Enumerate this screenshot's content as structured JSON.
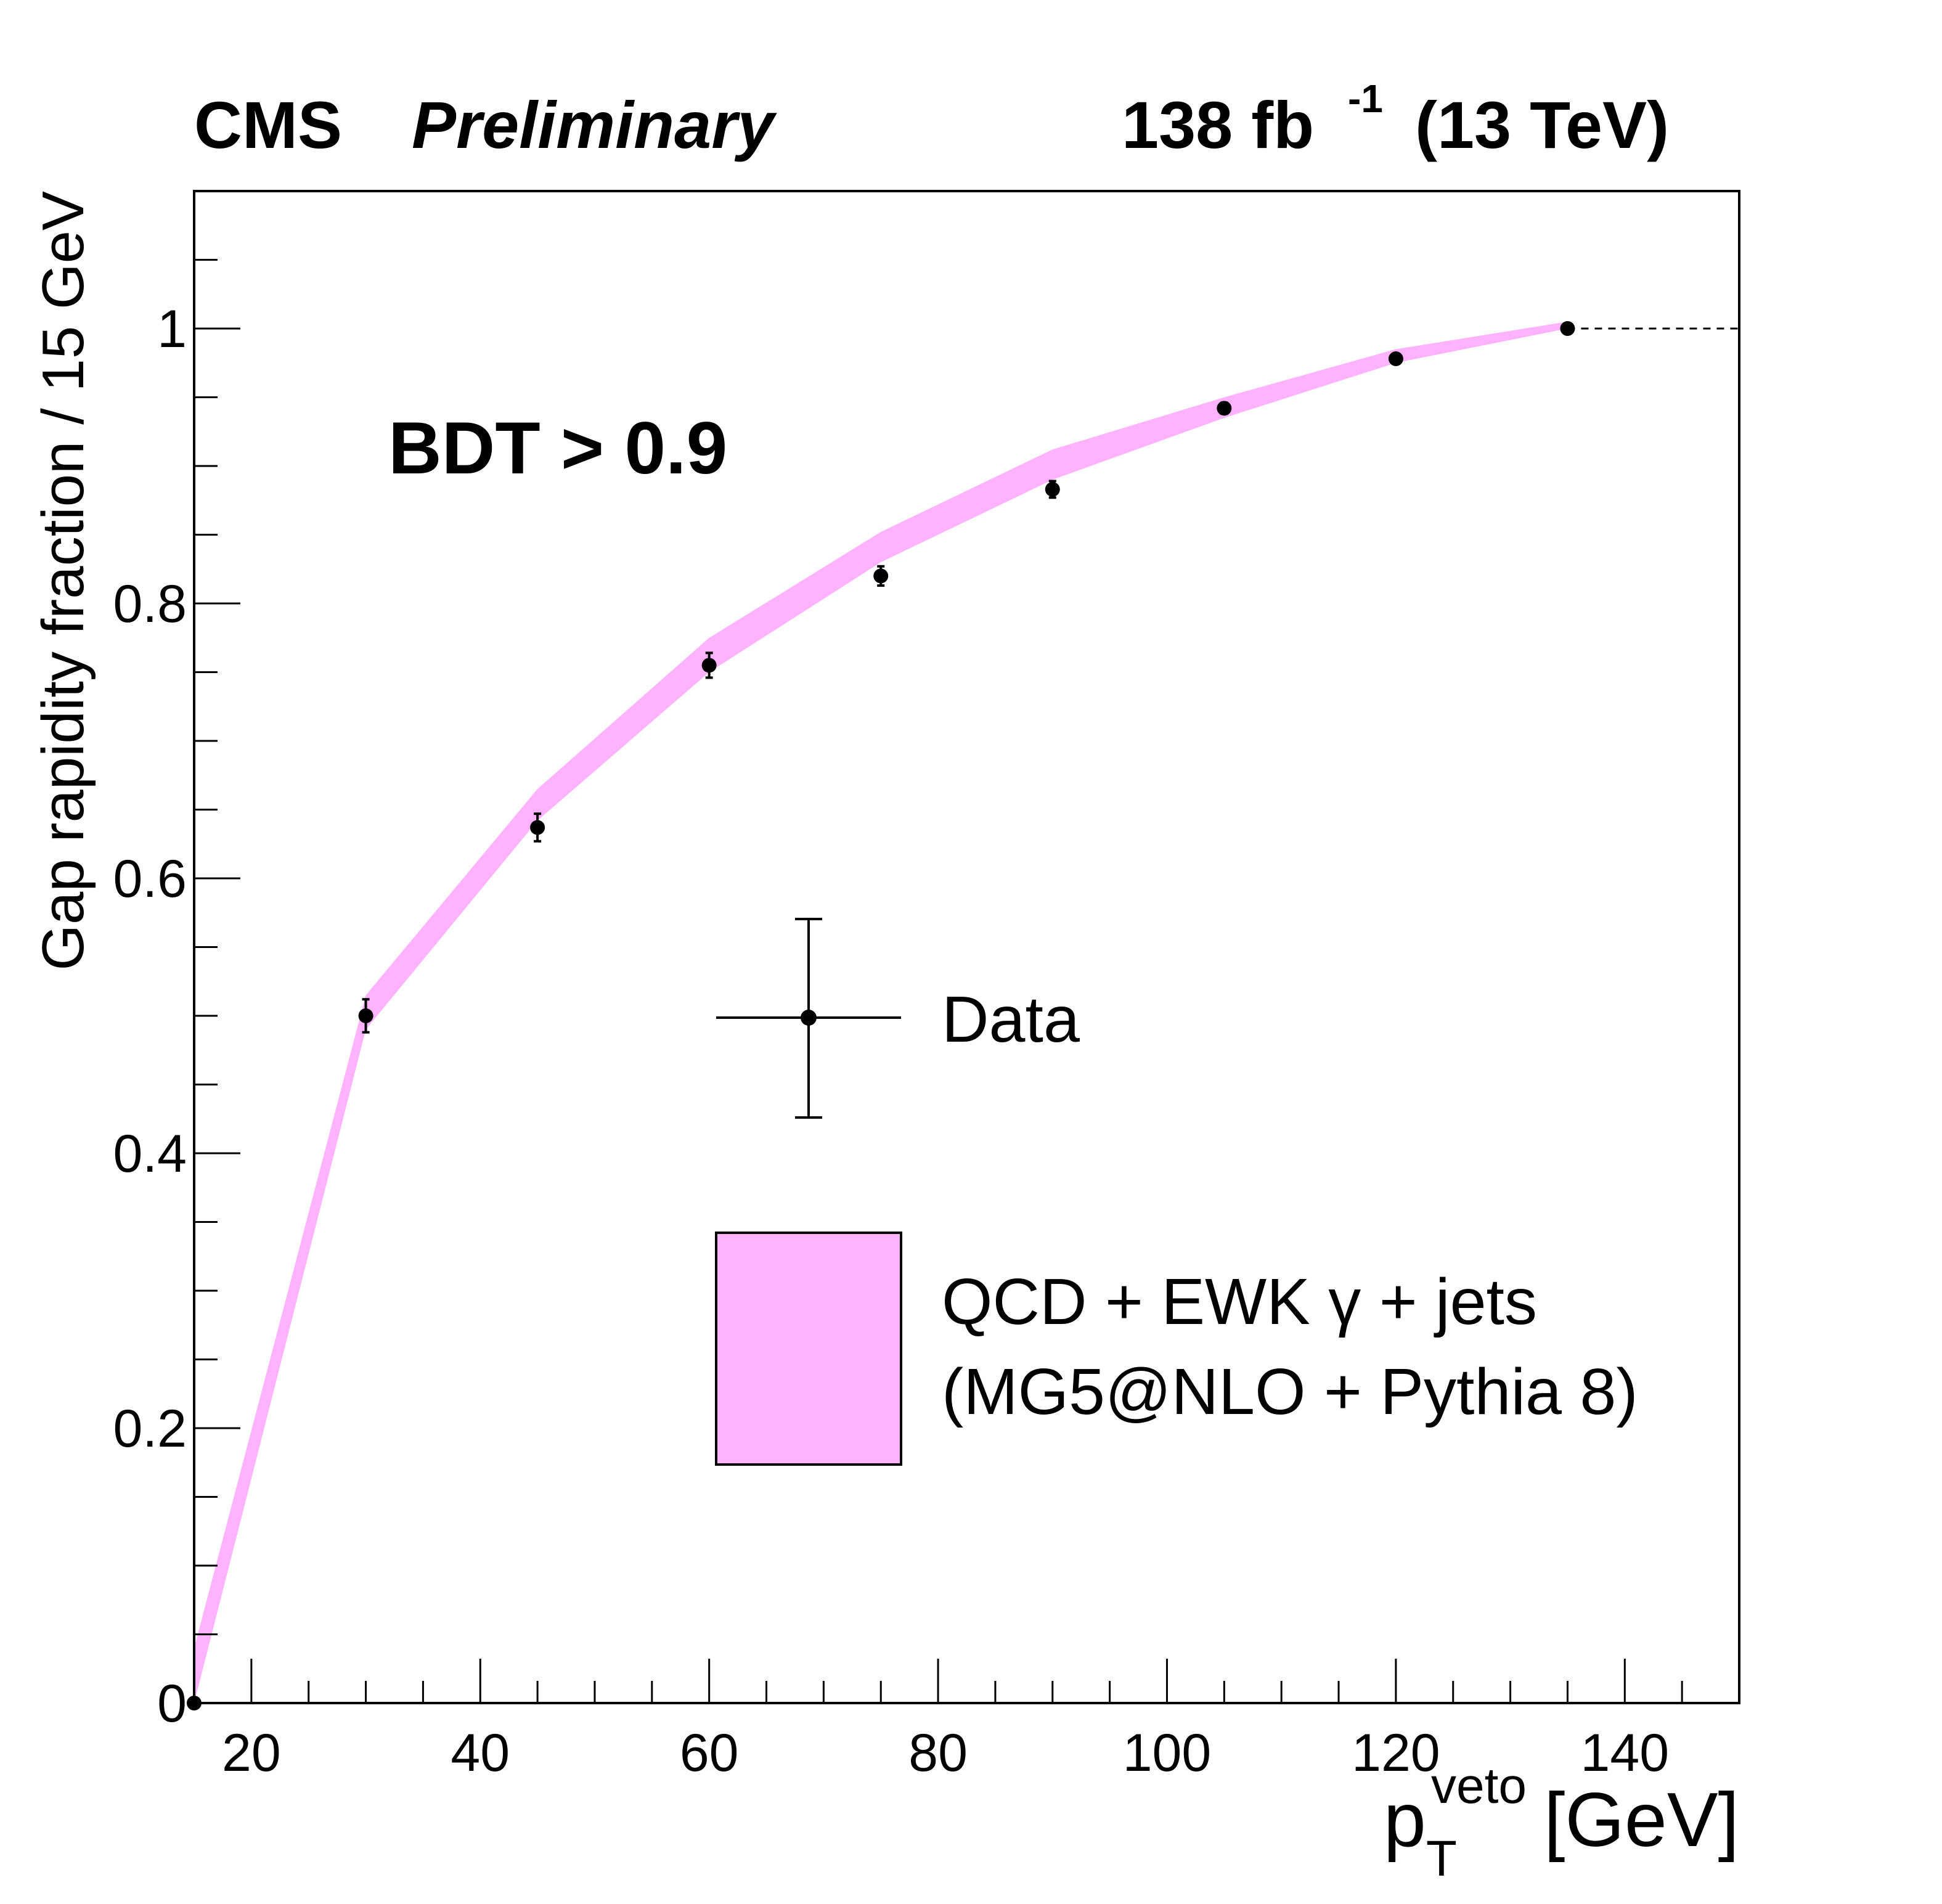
{
  "chart_data": {
    "type": "scatter",
    "header": {
      "experiment": "CMS",
      "status": "Preliminary",
      "lumi_value": "138 fb",
      "lumi_exp": "-1",
      "energy": "(13 TeV)"
    },
    "annotation": "BDT > 0.9",
    "xlabel": {
      "base": "p",
      "sub": "T",
      "sup": "veto",
      "unit": "[GeV]"
    },
    "ylabel": "Gap rapidity fraction / 15 GeV",
    "xlim": [
      15,
      150
    ],
    "ylim": [
      0,
      1.1
    ],
    "x_major_ticks": [
      20,
      40,
      60,
      80,
      100,
      120,
      140
    ],
    "x_minor_step": 5,
    "y_major_ticks": [
      0,
      0.2,
      0.4,
      0.6,
      0.8,
      1
    ],
    "y_minor_step": 0.05,
    "reference_line": 1.0,
    "series": [
      {
        "name": "Data",
        "type": "points",
        "x": [
          15,
          30,
          45,
          60,
          75,
          90,
          105,
          120,
          135
        ],
        "y": [
          0.0,
          0.5,
          0.637,
          0.755,
          0.82,
          0.883,
          0.942,
          0.978,
          1.0
        ],
        "yerr": [
          0.0,
          0.012,
          0.01,
          0.009,
          0.007,
          0.006,
          0.004,
          0.003,
          0.0
        ]
      },
      {
        "name": "QCD + EWK γ + jets (MG5@NLO + Pythia 8)",
        "type": "band",
        "color": "#ffb3ff",
        "x": [
          15,
          30,
          45,
          60,
          75,
          90,
          105,
          120,
          135
        ],
        "y_low": [
          0.0,
          0.49,
          0.642,
          0.75,
          0.83,
          0.89,
          0.935,
          0.975,
          1.0
        ],
        "y_high": [
          0.04,
          0.515,
          0.665,
          0.775,
          0.852,
          0.912,
          0.95,
          0.985,
          1.005
        ]
      }
    ],
    "legend": [
      {
        "label": "Data",
        "marker": "point-with-errorbars"
      },
      {
        "label_line1": "QCD + EWK γ + jets",
        "label_line2": "(MG5@NLO + Pythia 8)",
        "marker": "filled-box"
      }
    ]
  }
}
